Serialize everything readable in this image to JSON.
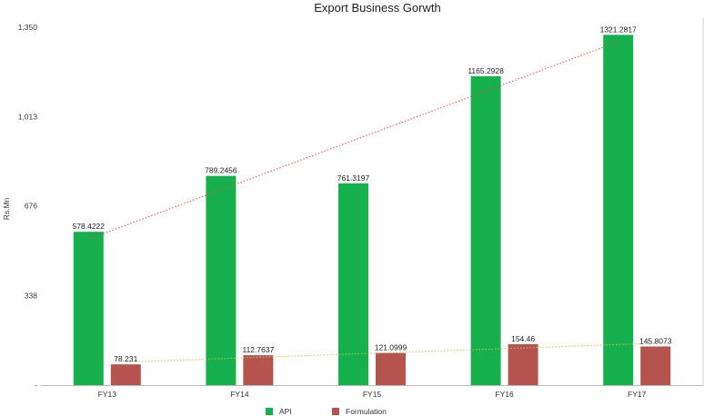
{
  "chart_data": {
    "type": "bar",
    "title": "Export Business Gorwth",
    "ylabel": "Rs.Mn",
    "xlabel": "",
    "categories": [
      "FY13",
      "FY14",
      "FY15",
      "FY16",
      "FY17"
    ],
    "ylim": [
      0,
      1350
    ],
    "yticks": [
      0,
      338,
      676,
      1013,
      1350
    ],
    "ytick_labels": [
      "-",
      "338",
      "676",
      "1,013",
      "1,350"
    ],
    "series": [
      {
        "name": "API",
        "color": "#16b04f",
        "values": [
          578.4222,
          789.2456,
          761.3197,
          1165.2928,
          1321.2817
        ],
        "labels": [
          "578.4222",
          "789.2456",
          "761.3197",
          "1165.2928",
          "1321.2817"
        ],
        "trendline_color": "#e8543f"
      },
      {
        "name": "Formulation",
        "color": "#b5544f",
        "values": [
          78.231,
          112.7637,
          121.0999,
          154.46,
          145.8073
        ],
        "labels": [
          "78.231",
          "112.7637",
          "121.0999",
          "154.46",
          "145.8073"
        ],
        "trendline_color": "#c9c05a"
      }
    ],
    "trendlines": true,
    "grid": false,
    "legend_position": "bottom"
  }
}
